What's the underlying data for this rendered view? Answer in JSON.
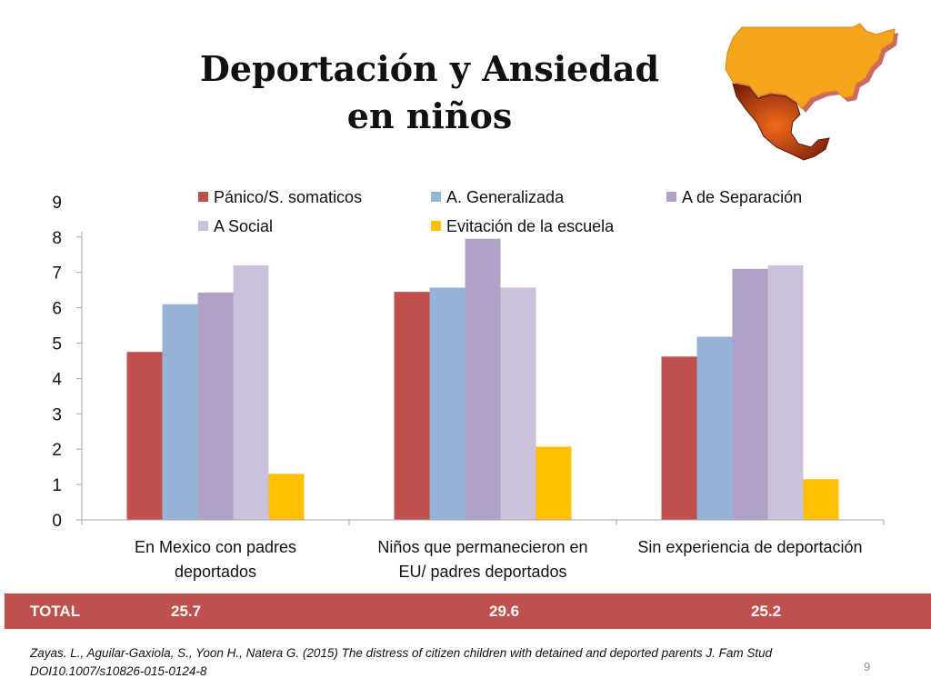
{
  "slide": {
    "title_lines": [
      "Deportación y Ansiedad",
      "en niños"
    ],
    "citation": "Zayas. L., Aguilar-Gaxiola, S., Yoon H., Natera G. (2015) The distress of citizen children with detained and deported parents J. Fam Stud DOI10.1007/s10826-015-0124-8",
    "page_number": "9"
  },
  "total": {
    "label": "TOTAL",
    "values": [
      "25.7",
      "29.6",
      "25.2"
    ]
  },
  "chart_data": {
    "type": "bar",
    "categories": [
      [
        "En Mexico con padres",
        "deportados"
      ],
      [
        "Niños que permanecieron en",
        "EU/ padres deportados"
      ],
      [
        "Sin experiencia de deportación"
      ]
    ],
    "series": [
      {
        "name": "Pánico/S. somaticos",
        "color": "#c0504d",
        "values": [
          4.75,
          6.45,
          4.62
        ]
      },
      {
        "name": "A. Generalizada",
        "color": "#95b3d7",
        "values": [
          6.1,
          6.57,
          5.18
        ]
      },
      {
        "name": "A de Separación",
        "color": "#b2a1c7",
        "values": [
          6.43,
          7.95,
          7.1
        ]
      },
      {
        "name": "A Social",
        "color": "#ccc1da",
        "values": [
          7.2,
          6.57,
          7.2
        ]
      },
      {
        "name": "Evitación de la escuela",
        "color": "#ffc000",
        "values": [
          1.3,
          2.07,
          1.15
        ]
      }
    ],
    "yticks": [
      "0",
      "1",
      "2",
      "3",
      "4",
      "5",
      "6",
      "7",
      "8",
      "9"
    ],
    "ylim": [
      0,
      8
    ],
    "legend_position": "top",
    "grid": false,
    "axis_color": "#a6a6a6"
  }
}
